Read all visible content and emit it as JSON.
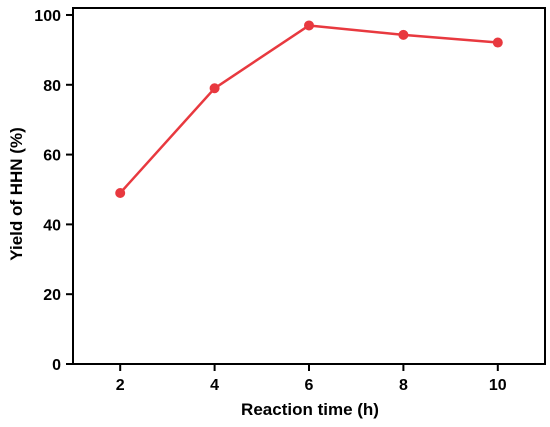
{
  "chart_data": {
    "type": "line",
    "title": "",
    "xlabel": "Reaction time (h)",
    "ylabel": "Yield of HHN (%)",
    "x": [
      2,
      4,
      6,
      8,
      10
    ],
    "xticks": [
      "2",
      "4",
      "6",
      "8",
      "10"
    ],
    "yticks": [
      "0",
      "20",
      "40",
      "60",
      "80",
      "100"
    ],
    "xlim": [
      1,
      11
    ],
    "ylim": [
      0,
      102
    ],
    "grid": false,
    "series": [
      {
        "values": [
          49,
          79,
          97,
          94.3,
          92.1
        ],
        "color": "#e8393f",
        "marker": "circle"
      }
    ]
  }
}
